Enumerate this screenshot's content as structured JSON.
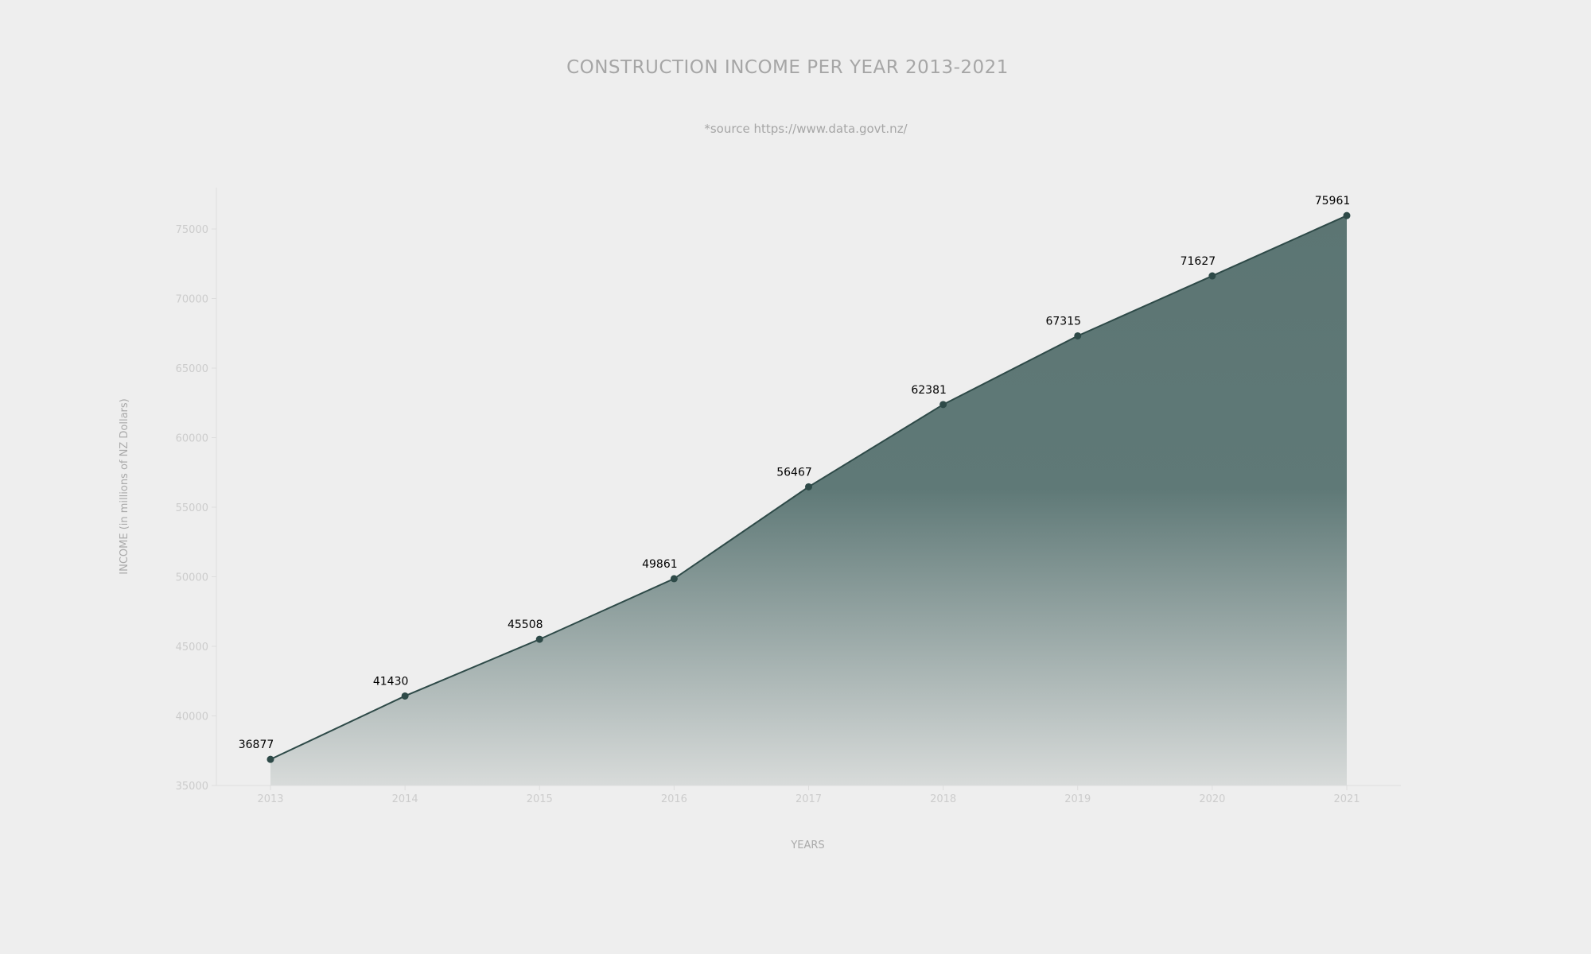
{
  "title": "CONSTRUCTION INCOME PER YEAR 2013-2021",
  "subtitle": "*source https://www.data.govt.nz/",
  "colors": {
    "line": "#2e4a48",
    "area_top": "#5c7573",
    "area_bottom": "#d8dbda",
    "axis": "#dddddd",
    "tick_text": "#cccccc",
    "label_text": "#aaaaaa"
  },
  "chart_data": {
    "type": "area",
    "title": "CONSTRUCTION INCOME PER YEAR 2013-2021",
    "subtitle": "*source https://www.data.govt.nz/",
    "xlabel": "YEARS",
    "ylabel": "INCOME (in millions of NZ Dollars)",
    "x": [
      "2013",
      "2014",
      "2015",
      "2016",
      "2017",
      "2018",
      "2019",
      "2020",
      "2021"
    ],
    "series": [
      {
        "values": [
          36877,
          41430,
          45508,
          49861,
          56467,
          62381,
          67315,
          71627,
          75961
        ]
      }
    ],
    "data_labels": [
      "36877",
      "41430",
      "45508",
      "49861",
      "56467",
      "62381",
      "67315",
      "71627",
      "75961"
    ],
    "y_ticks": [
      "35000",
      "40000",
      "45000",
      "50000",
      "55000",
      "60000",
      "65000",
      "70000",
      "75000"
    ],
    "ylim": [
      35000,
      77000
    ],
    "grid": false,
    "legend": "none"
  }
}
